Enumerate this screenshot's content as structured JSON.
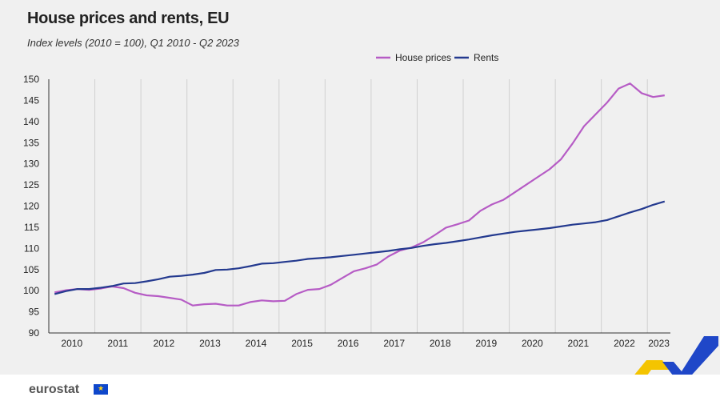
{
  "header": {
    "title": "House prices and rents, EU",
    "subtitle": "Index levels (2010 = 100), Q1 2010 - Q2 2023"
  },
  "footer": {
    "logo_text": "eurostat",
    "flag_icon": "eu-flag-icon"
  },
  "colors": {
    "house_prices": "#b65cc5",
    "rents": "#243a8f",
    "grid": "#d0d0d0",
    "panel_bg": "#f0f0f0"
  },
  "chart_data": {
    "type": "line",
    "title": "House prices and rents, EU",
    "subtitle": "Index levels (2010 = 100), Q1 2010 - Q2 2023",
    "xlabel": "",
    "ylabel": "",
    "ylim": [
      90,
      150
    ],
    "yticks": [
      "150",
      "145",
      "140",
      "135",
      "130",
      "125",
      "120",
      "115",
      "110",
      "105",
      "100",
      "95",
      "90"
    ],
    "xticks": [
      "2010",
      "2011",
      "2012",
      "2013",
      "2014",
      "2015",
      "2016",
      "2017",
      "2018",
      "2019",
      "2020",
      "2021",
      "2022",
      "2023"
    ],
    "grid": true,
    "legend": "top-center",
    "x": [
      "2010Q1",
      "2010Q2",
      "2010Q3",
      "2010Q4",
      "2011Q1",
      "2011Q2",
      "2011Q3",
      "2011Q4",
      "2012Q1",
      "2012Q2",
      "2012Q3",
      "2012Q4",
      "2013Q1",
      "2013Q2",
      "2013Q3",
      "2013Q4",
      "2014Q1",
      "2014Q2",
      "2014Q3",
      "2014Q4",
      "2015Q1",
      "2015Q2",
      "2015Q3",
      "2015Q4",
      "2016Q1",
      "2016Q2",
      "2016Q3",
      "2016Q4",
      "2017Q1",
      "2017Q2",
      "2017Q3",
      "2017Q4",
      "2018Q1",
      "2018Q2",
      "2018Q3",
      "2018Q4",
      "2019Q1",
      "2019Q2",
      "2019Q3",
      "2019Q4",
      "2020Q1",
      "2020Q2",
      "2020Q3",
      "2020Q4",
      "2021Q1",
      "2021Q2",
      "2021Q3",
      "2021Q4",
      "2022Q1",
      "2022Q2",
      "2022Q3",
      "2022Q4",
      "2023Q1",
      "2023Q2"
    ],
    "series": [
      {
        "name": "House prices",
        "values": [
          99.6,
          100.1,
          100.4,
          100.2,
          100.5,
          101.0,
          100.6,
          99.5,
          98.9,
          98.7,
          98.3,
          97.9,
          96.5,
          96.8,
          96.9,
          96.5,
          96.5,
          97.3,
          97.7,
          97.5,
          97.6,
          99.2,
          100.2,
          100.4,
          101.4,
          103.0,
          104.6,
          105.3,
          106.2,
          108.1,
          109.5,
          110.2,
          111.4,
          113.1,
          114.9,
          115.7,
          116.6,
          118.9,
          120.4,
          121.5,
          123.3,
          125.1,
          126.9,
          128.7,
          131.1,
          134.8,
          138.9,
          141.7,
          144.5,
          147.8,
          149.0,
          146.7,
          145.8,
          146.2
        ]
      },
      {
        "name": "Rents",
        "values": [
          99.2,
          99.9,
          100.4,
          100.4,
          100.7,
          101.1,
          101.7,
          101.8,
          102.2,
          102.7,
          103.3,
          103.5,
          103.8,
          104.2,
          104.9,
          105.0,
          105.3,
          105.8,
          106.4,
          106.5,
          106.8,
          107.1,
          107.5,
          107.7,
          107.9,
          108.2,
          108.5,
          108.8,
          109.1,
          109.4,
          109.8,
          110.1,
          110.6,
          111.0,
          111.3,
          111.7,
          112.1,
          112.6,
          113.1,
          113.5,
          113.9,
          114.2,
          114.5,
          114.8,
          115.2,
          115.6,
          115.9,
          116.2,
          116.7,
          117.6,
          118.5,
          119.3,
          120.3,
          121.1
        ]
      }
    ]
  }
}
